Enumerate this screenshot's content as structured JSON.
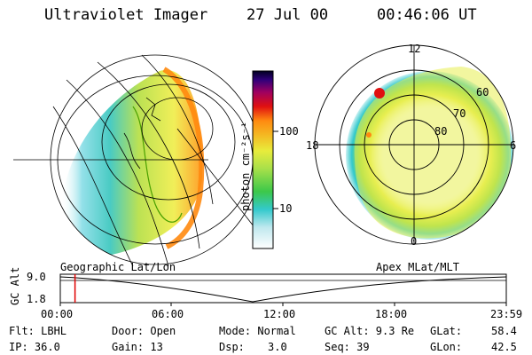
{
  "header": {
    "title": "Ultraviolet Imager",
    "date": "27 Jul 00",
    "time": "00:46:06 UT"
  },
  "colorbar": {
    "label": "photon cm⁻²s⁻¹",
    "ticks": [
      "100",
      "10"
    ]
  },
  "geo_panel": {
    "label": "Geographic Lat/Lon"
  },
  "polar_panel": {
    "label": "Apex MLat/MLT",
    "mlt_labels": {
      "top": "12",
      "left": "18",
      "right": "6",
      "bottom": "0"
    },
    "lat_labels": [
      "60",
      "70",
      "80"
    ]
  },
  "timeline": {
    "axis_label": "GC Alt",
    "y_ticks": [
      "9.0",
      "1.8"
    ],
    "x_ticks": [
      "00:00",
      "06:00",
      "12:00",
      "18:00",
      "23:59"
    ],
    "marker_fraction": 0.033
  },
  "info": {
    "flt": "Flt: LBHL",
    "ip": "IP: 36.0",
    "door": "Door: Open",
    "gain": "Gain: 13",
    "mode": "Mode: Normal",
    "dsp_label": "Dsp:",
    "dsp_value": "3.0",
    "gcalt": "GC Alt: 9.3 Re",
    "seq": "Seq: 39",
    "glat_label": "GLat:",
    "glat_value": "58.4",
    "glon_label": "GLon:",
    "glon_value": "42.5"
  },
  "colors": {
    "red_marker": "#e00000"
  }
}
